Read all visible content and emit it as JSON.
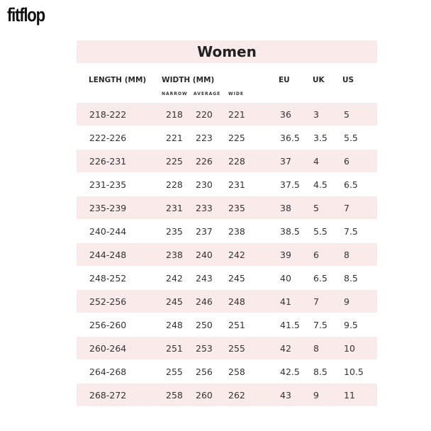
{
  "brand": "fitflop",
  "title": "Women",
  "headers": {
    "length": "LENGTH (MM)",
    "width": "WIDTH (MM)",
    "eu": "EU",
    "uk": "UK",
    "us": "US",
    "narrow": "NARROW",
    "average": "AVERAGE",
    "wide": "WIDE"
  },
  "rows": [
    [
      "218-222",
      "218",
      "220",
      "221",
      "36",
      "3",
      "5"
    ],
    [
      "222-226",
      "221",
      "223",
      "225",
      "36.5",
      "3.5",
      "5.5"
    ],
    [
      "226-231",
      "225",
      "226",
      "228",
      "37",
      "4",
      "6"
    ],
    [
      "231-235",
      "228",
      "230",
      "231",
      "37.5",
      "4.5",
      "6.5"
    ],
    [
      "235-239",
      "231",
      "233",
      "235",
      "38",
      "5",
      "7"
    ],
    [
      "240-244",
      "235",
      "237",
      "238",
      "38.5",
      "5.5",
      "7.5"
    ],
    [
      "244-248",
      "238",
      "240",
      "242",
      "39",
      "6",
      "8"
    ],
    [
      "248-252",
      "242",
      "243",
      "245",
      "40",
      "6.5",
      "8.5"
    ],
    [
      "252-256",
      "245",
      "246",
      "248",
      "41",
      "7",
      "9"
    ],
    [
      "256-260",
      "248",
      "250",
      "251",
      "41.5",
      "7.5",
      "9.5"
    ],
    [
      "260-264",
      "251",
      "253",
      "255",
      "42",
      "8",
      "10"
    ],
    [
      "264-268",
      "255",
      "256",
      "258",
      "42.5",
      "8.5",
      "10.5"
    ],
    [
      "268-272",
      "258",
      "260",
      "262",
      "43",
      "9",
      "11"
    ]
  ],
  "colors": {
    "row_highlight": "#f9ebe9"
  }
}
